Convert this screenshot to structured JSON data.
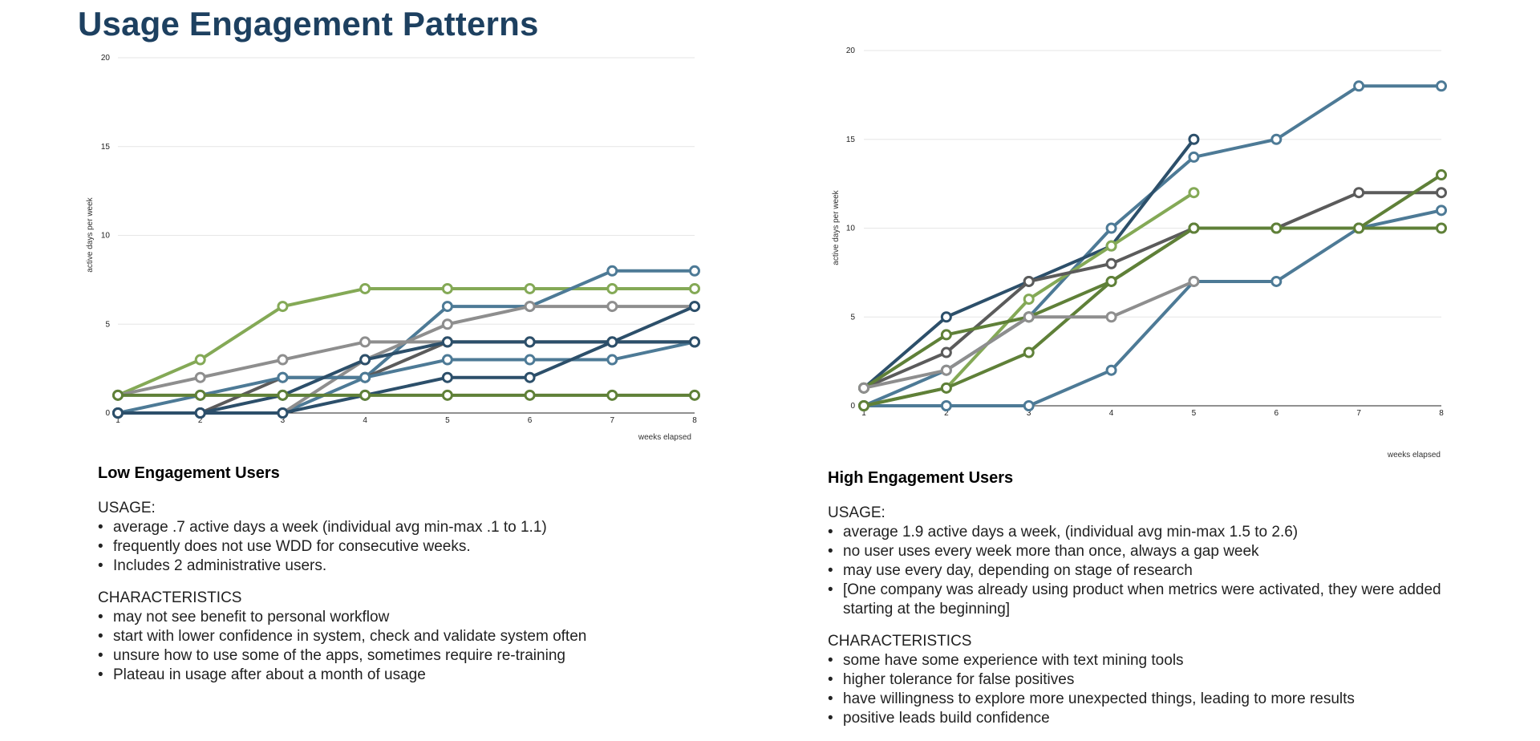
{
  "title": "Usage Engagement Patterns",
  "colors": {
    "light_green": "#84a956",
    "dark_green": "#5f8038",
    "steel_blue": "#4d7a96",
    "navy": "#2c4f6a",
    "dark_gray": "#5b5b5b",
    "light_gray": "#8e8e8e"
  },
  "chart_data": [
    {
      "type": "line",
      "xlabel": "weeks elapsed",
      "ylabel": "active days per week",
      "xlim": [
        1,
        8
      ],
      "ylim": [
        0,
        20
      ],
      "yticks": [
        0,
        5,
        10,
        15,
        20
      ],
      "xticks": [
        1,
        2,
        3,
        4,
        5,
        6,
        7,
        8
      ],
      "grid": true,
      "legend": "none",
      "series": [
        {
          "color": "#84a956",
          "x": [
            1,
            2,
            3,
            4,
            5,
            6,
            7,
            8
          ],
          "y": [
            1,
            3,
            6,
            7,
            7,
            7,
            7,
            7
          ]
        },
        {
          "color": "#4d7a96",
          "x": [
            1,
            2,
            3,
            4,
            5,
            6,
            7,
            8
          ],
          "y": [
            0,
            0,
            0,
            2,
            6,
            6,
            8,
            8
          ]
        },
        {
          "color": "#8e8e8e",
          "x": [
            1,
            2,
            3,
            4,
            5,
            6,
            7,
            8
          ],
          "y": [
            1,
            2,
            3,
            4,
            4,
            4,
            4,
            4
          ]
        },
        {
          "color": "#8e8e8e",
          "x": [
            1,
            2,
            3,
            4,
            5,
            6,
            7,
            8
          ],
          "y": [
            0,
            0,
            0,
            3,
            5,
            6,
            6,
            6
          ]
        },
        {
          "color": "#5b5b5b",
          "x": [
            1,
            2,
            3,
            4,
            5,
            6,
            7,
            8
          ],
          "y": [
            0,
            0,
            2,
            2,
            4,
            4,
            4,
            4
          ]
        },
        {
          "color": "#4d7a96",
          "x": [
            1,
            2,
            3,
            4,
            5,
            6,
            7,
            8
          ],
          "y": [
            0,
            1,
            2,
            2,
            3,
            3,
            3,
            4
          ]
        },
        {
          "color": "#2c4f6a",
          "x": [
            1,
            2,
            3,
            4,
            5,
            6,
            7,
            8
          ],
          "y": [
            0,
            0,
            0,
            1,
            2,
            2,
            4,
            6
          ]
        },
        {
          "color": "#2c4f6a",
          "x": [
            1,
            2,
            3,
            4,
            5,
            6,
            7,
            8
          ],
          "y": [
            0,
            0,
            1,
            3,
            4,
            4,
            4,
            4
          ]
        },
        {
          "color": "#5f8038",
          "x": [
            1,
            2,
            3,
            4,
            5,
            6,
            7,
            8
          ],
          "y": [
            1,
            1,
            1,
            1,
            1,
            1,
            1,
            1
          ]
        }
      ]
    },
    {
      "type": "line",
      "xlabel": "weeks elapsed",
      "ylabel": "active days per week",
      "xlim": [
        1,
        8
      ],
      "ylim": [
        0,
        20
      ],
      "yticks": [
        0,
        5,
        10,
        15,
        20
      ],
      "xticks": [
        1,
        2,
        3,
        4,
        5,
        6,
        7,
        8
      ],
      "grid": true,
      "legend": "none",
      "series": [
        {
          "color": "#4d7a96",
          "x": [
            1,
            2,
            3,
            4,
            5,
            6,
            7,
            8
          ],
          "y": [
            0,
            2,
            5,
            10,
            14,
            15,
            18,
            18
          ]
        },
        {
          "color": "#4d7a96",
          "x": [
            1,
            2,
            3,
            4,
            5,
            6,
            7,
            8
          ],
          "y": [
            0,
            0,
            0,
            2,
            7,
            7,
            10,
            11
          ]
        },
        {
          "color": "#2c4f6a",
          "x": [
            1,
            2,
            3,
            4,
            5
          ],
          "y": [
            1,
            5,
            7,
            9,
            15
          ]
        },
        {
          "color": "#84a956",
          "x": [
            1,
            2,
            3,
            4,
            5
          ],
          "y": [
            0,
            1,
            6,
            9,
            12
          ]
        },
        {
          "color": "#5b5b5b",
          "x": [
            1,
            2,
            3,
            4,
            5,
            6,
            7,
            8
          ],
          "y": [
            1,
            3,
            7,
            8,
            10,
            10,
            12,
            12
          ]
        },
        {
          "color": "#5f8038",
          "x": [
            1,
            2,
            3,
            4,
            5,
            6,
            7,
            8
          ],
          "y": [
            1,
            4,
            5,
            7,
            10,
            10,
            10,
            13
          ]
        },
        {
          "color": "#5f8038",
          "x": [
            1,
            2,
            3,
            4,
            5,
            6,
            7,
            8
          ],
          "y": [
            0,
            1,
            3,
            7,
            10,
            10,
            10,
            10
          ]
        },
        {
          "color": "#8e8e8e",
          "x": [
            1,
            2,
            3,
            4,
            5
          ],
          "y": [
            1,
            2,
            5,
            5,
            7
          ]
        }
      ]
    }
  ],
  "panels": {
    "low": {
      "heading": "Low Engagement Users",
      "usage_label": "USAGE:",
      "usage": [
        "average .7 active days a week (individual avg min-max .1 to 1.1)",
        "frequently does not use WDD for consecutive weeks.",
        "Includes 2 administrative users."
      ],
      "characteristics_label": "CHARACTERISTICS",
      "characteristics": [
        "may not see benefit to personal workflow",
        "start with lower confidence in system, check and validate system often",
        "unsure how to use some of the apps, sometimes require re-training",
        "Plateau in usage after about a month of usage"
      ]
    },
    "high": {
      "heading": "High Engagement Users",
      "usage_label": "USAGE:",
      "usage": [
        "average 1.9 active days a week, (individual avg min-max 1.5 to 2.6)",
        "no user uses every week more than once, always a gap week",
        "may use every day, depending on stage of research",
        "[One company was already using product when metrics were activated, they were added starting at the beginning]"
      ],
      "characteristics_label": "CHARACTERISTICS",
      "characteristics": [
        "some have some experience with text mining tools",
        "higher tolerance for false positives",
        "have willingness to explore more unexpected things, leading to more results",
        "positive leads build confidence"
      ]
    }
  }
}
